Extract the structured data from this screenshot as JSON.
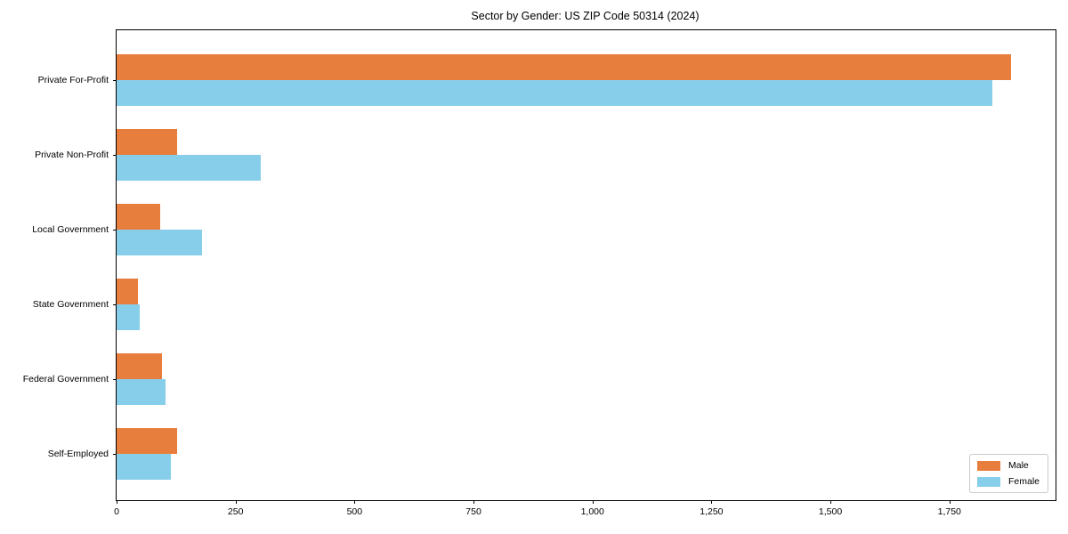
{
  "chart_data": {
    "type": "bar",
    "orientation": "horizontal",
    "title": "Sector by Gender: US ZIP Code 50314 (2024)",
    "categories": [
      "Private For-Profit",
      "Private Non-Profit",
      "Local Government",
      "State Government",
      "Federal Government",
      "Self-Employed"
    ],
    "series": [
      {
        "name": "Male",
        "color": "#e87e3e",
        "values": [
          1880,
          127,
          91,
          45,
          95,
          128
        ]
      },
      {
        "name": "Female",
        "color": "#87ceeb",
        "values": [
          1840,
          303,
          179,
          48,
          102,
          115
        ]
      }
    ],
    "xlabel": "",
    "ylabel": "",
    "xlim": [
      0,
      1973
    ],
    "x_ticks": [
      0,
      250,
      500,
      750,
      1000,
      1250,
      1500,
      1750
    ],
    "x_tick_labels": [
      "0",
      "250",
      "500",
      "750",
      "1,000",
      "1,250",
      "1,500",
      "1,750"
    ],
    "grid": false,
    "legend_position": "lower right",
    "legend_entries": [
      "Male",
      "Female"
    ]
  }
}
